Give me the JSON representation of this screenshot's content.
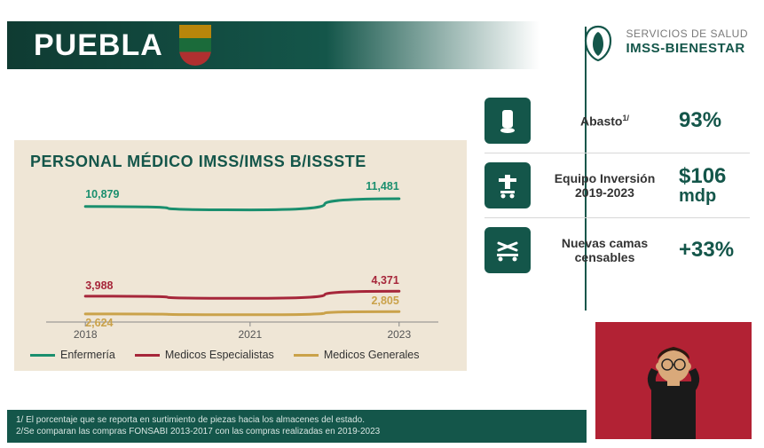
{
  "header": {
    "title": "PUEBLA",
    "brand_small": "SERVICIOS DE SALUD",
    "brand_big": "IMSS-BIENESTAR"
  },
  "chart": {
    "type": "line",
    "title": "PERSONAL MÉDICO IMSS/IMSS B/ISSSTE",
    "x_categories": [
      "2018",
      "2021",
      "2023"
    ],
    "x_positions": [
      0.1,
      0.52,
      0.9
    ],
    "ylim": [
      2000,
      12500
    ],
    "background_color": "#efe6d6",
    "title_color": "#14564a",
    "title_fontsize": 18,
    "axis_fontsize": 12,
    "axis_color": "#555555",
    "axis_line_color": "#888888",
    "label_fontsize": 12.5,
    "series": [
      {
        "name": "Enfermería",
        "color": "#1a8f6e",
        "width": 3,
        "values": [
          10879,
          10620,
          11481
        ],
        "point_labels": [
          {
            "i": 0,
            "text": "10,879",
            "dy": -10
          },
          {
            "i": 2,
            "text": "11,481",
            "dy": -10
          }
        ]
      },
      {
        "name": "Medicos Especialistas",
        "color": "#a6263a",
        "width": 3,
        "values": [
          3988,
          3820,
          4371
        ],
        "point_labels": [
          {
            "i": 0,
            "text": "3,988",
            "dy": -8
          },
          {
            "i": 2,
            "text": "4,371",
            "dy": -8
          }
        ]
      },
      {
        "name": "Medicos Generales",
        "color": "#caa24a",
        "width": 3,
        "values": [
          2624,
          2560,
          2805
        ],
        "point_labels": [
          {
            "i": 0,
            "text": "2,624",
            "dy": 14
          },
          {
            "i": 2,
            "text": "2,805",
            "dy": -8
          }
        ]
      }
    ],
    "legend": [
      {
        "label": "Enfermería",
        "color": "#1a8f6e"
      },
      {
        "label": "Medicos Especialistas",
        "color": "#a6263a"
      },
      {
        "label": "Medicos Generales",
        "color": "#caa24a"
      }
    ]
  },
  "stats": [
    {
      "icon": "pill",
      "label_html": "Abasto<sup>1/</sup>",
      "value": "93%",
      "unit": ""
    },
    {
      "icon": "equipment",
      "label_html": "Equipo Inversión 2019-2023",
      "value": "$106",
      "unit": "mdp"
    },
    {
      "icon": "bed",
      "label_html": "Nuevas camas censables",
      "value": "+33%",
      "unit": ""
    }
  ],
  "colors": {
    "brand_green": "#14564a",
    "dark_green": "#0f3b32",
    "red_panel": "#b22234",
    "beige": "#efe6d6",
    "white": "#ffffff"
  },
  "footnotes": {
    "line1": "1/ El porcentaje que se reporta en surtimiento de piezas hacia los almacenes del estado.",
    "line2": "2/Se comparan las compras FONSABI 2013-2017 con las compras realizadas en 2019-2023"
  }
}
